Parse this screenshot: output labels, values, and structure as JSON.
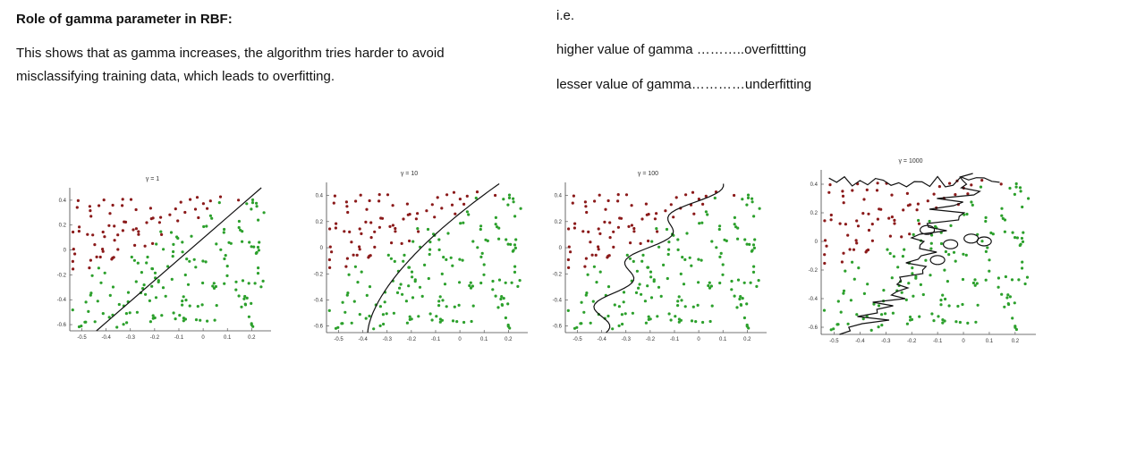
{
  "text": {
    "heading": "Role of gamma parameter in RBF:",
    "explanation_line1": "This shows that as gamma increases, the algorithm tries harder to avoid",
    "explanation_line2": "misclassifying training data, which leads to overfitting.",
    "ie": "i.e.",
    "higher": "higher value of gamma  ………..overfittting",
    "lesser": "lesser value of gamma…………underfitting"
  },
  "chart_data": [
    {
      "type": "scatter",
      "title": "γ = 1",
      "x_ticks": [
        "-0.5",
        "-0.4",
        "-0.3",
        "-0.2",
        "-0.1",
        "0",
        "0.1",
        "0.2"
      ],
      "y_ticks": [
        "0.4",
        "0.2",
        "0",
        "-0.2",
        "-0.4",
        "-0.6"
      ],
      "xlim": [
        -0.55,
        0.28
      ],
      "ylim": [
        -0.65,
        0.5
      ],
      "series": [
        {
          "color": "#8b1a1a"
        },
        {
          "color": "#2ca02c"
        }
      ],
      "boundary": "linear"
    },
    {
      "type": "scatter",
      "title": "γ = 10",
      "x_ticks": [
        "-0.5",
        "-0.4",
        "-0.3",
        "-0.2",
        "-0.1",
        "0",
        "0.1",
        "0.2"
      ],
      "y_ticks": [
        "0.4",
        "0.2",
        "0",
        "-0.2",
        "-0.4",
        "-0.6"
      ],
      "xlim": [
        -0.55,
        0.28
      ],
      "ylim": [
        -0.65,
        0.5
      ],
      "series": [
        {
          "color": "#8b1a1a"
        },
        {
          "color": "#2ca02c"
        }
      ],
      "boundary": "curved"
    },
    {
      "type": "scatter",
      "title": "γ = 100",
      "x_ticks": [
        "-0.5",
        "-0.4",
        "-0.3",
        "-0.2",
        "-0.1",
        "0",
        "0.1",
        "0.2"
      ],
      "y_ticks": [
        "0.4",
        "0.2",
        "0",
        "-0.2",
        "-0.4",
        "-0.6"
      ],
      "xlim": [
        -0.55,
        0.28
      ],
      "ylim": [
        -0.65,
        0.5
      ],
      "series": [
        {
          "color": "#8b1a1a"
        },
        {
          "color": "#2ca02c"
        }
      ],
      "boundary": "wiggly"
    },
    {
      "type": "scatter",
      "title": "γ = 1000",
      "x_ticks": [
        "-0.5",
        "-0.4",
        "-0.3",
        "-0.2",
        "-0.1",
        "0",
        "0.1",
        "0.2"
      ],
      "y_ticks": [
        "0.4",
        "0.2",
        "0",
        "-0.2",
        "-0.4",
        "-0.6"
      ],
      "xlim": [
        -0.55,
        0.28
      ],
      "ylim": [
        -0.65,
        0.5
      ],
      "series": [
        {
          "color": "#8b1a1a"
        },
        {
          "color": "#2ca02c"
        }
      ],
      "boundary": "islands"
    }
  ]
}
